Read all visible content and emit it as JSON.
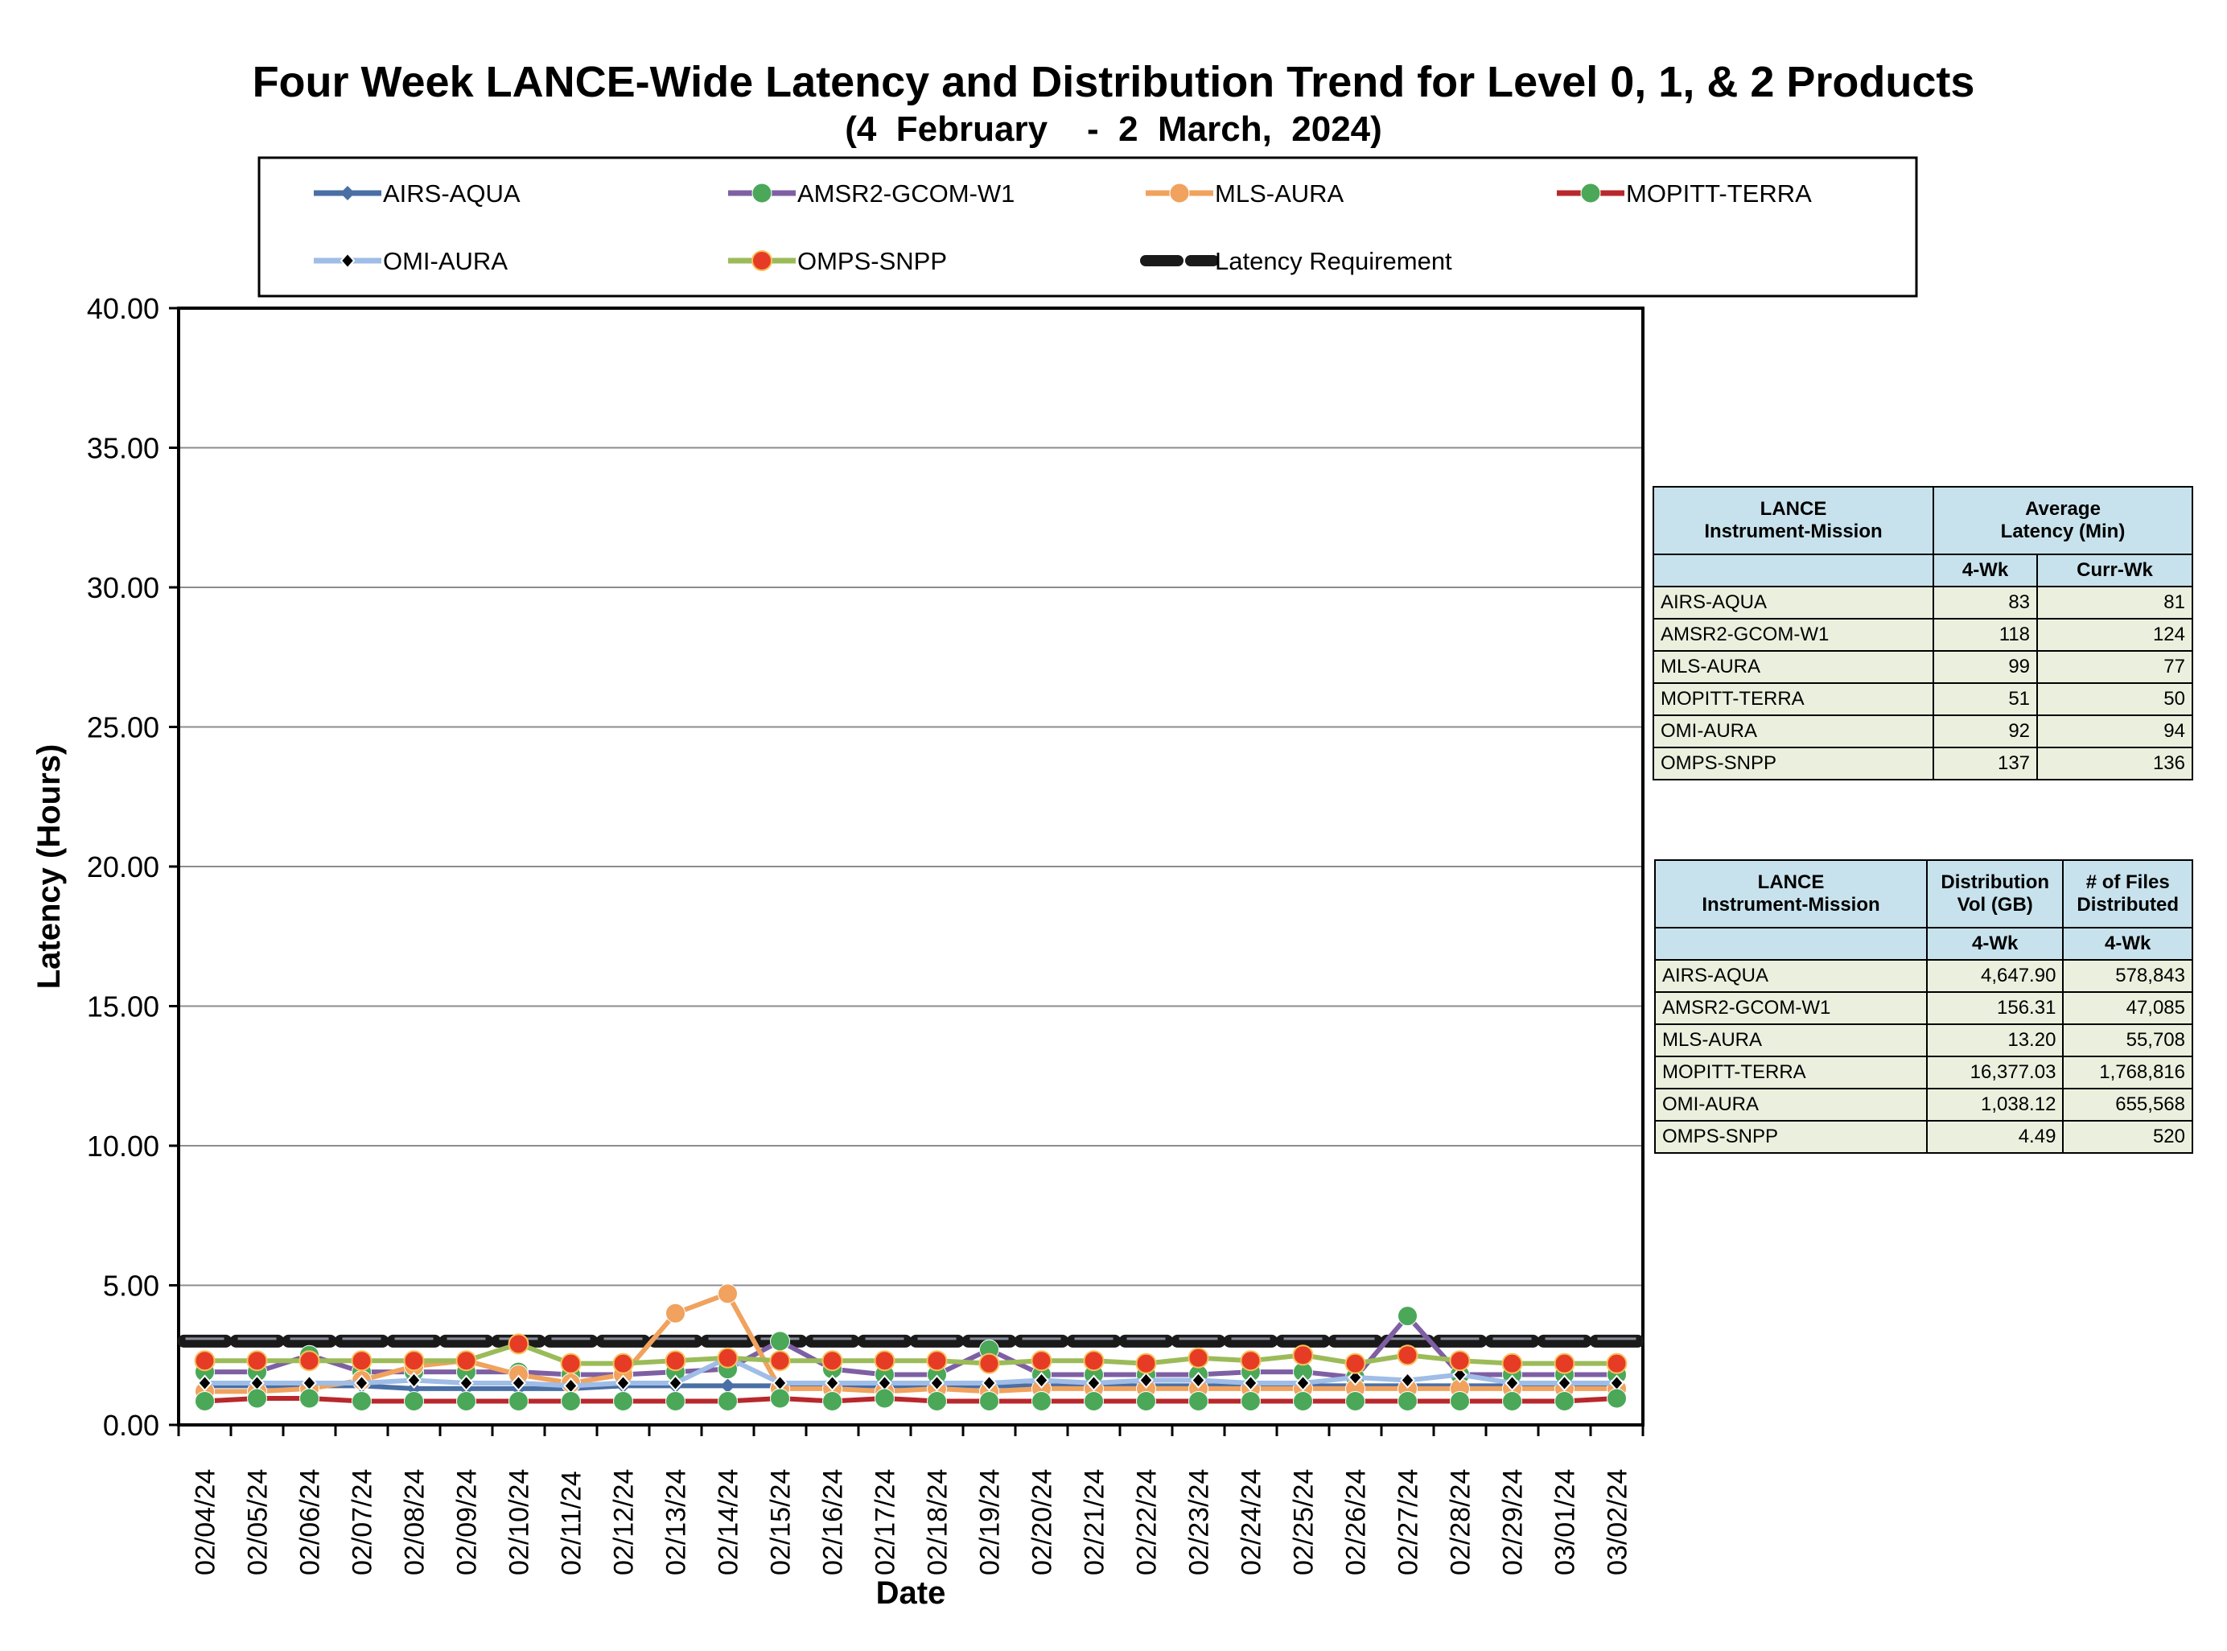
{
  "chart_data": {
    "type": "line",
    "title": "Four Week LANCE-Wide Latency and Distribution Trend for Level 0, 1, & 2 Products",
    "subtitle": "(4  February    -  2  March,  2024)",
    "xlabel": "Date",
    "ylabel": "Latency (Hours)",
    "ylim": [
      0,
      40
    ],
    "yticks": [
      "0.00",
      "5.00",
      "10.00",
      "15.00",
      "20.00",
      "25.00",
      "30.00",
      "35.00",
      "40.00"
    ],
    "grid": true,
    "legend_position": "top",
    "categories": [
      "02/04/24",
      "02/05/24",
      "02/06/24",
      "02/07/24",
      "02/08/24",
      "02/09/24",
      "02/10/24",
      "02/11/24",
      "02/12/24",
      "02/13/24",
      "02/14/24",
      "02/15/24",
      "02/16/24",
      "02/17/24",
      "02/18/24",
      "02/19/24",
      "02/20/24",
      "02/21/24",
      "02/22/24",
      "02/23/24",
      "02/24/24",
      "02/25/24",
      "02/26/24",
      "02/27/24",
      "02/28/24",
      "02/29/24",
      "03/01/24",
      "03/02/24"
    ],
    "series": [
      {
        "name": "AIRS-AQUA",
        "color": "#4a6fa5",
        "marker": "diamond",
        "values": [
          1.4,
          1.4,
          1.4,
          1.4,
          1.3,
          1.3,
          1.3,
          1.3,
          1.4,
          1.4,
          1.4,
          1.4,
          1.4,
          1.4,
          1.4,
          1.4,
          1.4,
          1.4,
          1.4,
          1.4,
          1.4,
          1.4,
          1.4,
          1.4,
          1.4,
          1.4,
          1.4,
          1.4
        ]
      },
      {
        "name": "AMSR2-GCOM-W1",
        "color": "#7e5fa3",
        "marker": "circle-green",
        "values": [
          1.9,
          1.9,
          2.5,
          1.9,
          1.9,
          1.9,
          1.9,
          1.8,
          1.8,
          1.9,
          2.0,
          3.0,
          2.0,
          1.8,
          1.8,
          2.7,
          1.8,
          1.8,
          1.8,
          1.8,
          1.9,
          1.9,
          1.7,
          3.9,
          1.8,
          1.8,
          1.8,
          1.8
        ]
      },
      {
        "name": "MLS-AURA",
        "color": "#f0a25e",
        "marker": "circle-orange",
        "values": [
          1.2,
          1.2,
          1.3,
          1.6,
          2.1,
          2.3,
          1.8,
          1.5,
          1.8,
          4.0,
          4.7,
          1.3,
          1.3,
          1.2,
          1.3,
          1.2,
          1.3,
          1.3,
          1.3,
          1.3,
          1.3,
          1.3,
          1.3,
          1.3,
          1.3,
          1.3,
          1.3,
          1.3
        ]
      },
      {
        "name": "MOPITT-TERRA",
        "color": "#b8282d",
        "marker": "circle-green",
        "values": [
          0.85,
          0.95,
          0.95,
          0.85,
          0.85,
          0.85,
          0.85,
          0.85,
          0.85,
          0.85,
          0.85,
          0.95,
          0.85,
          0.95,
          0.85,
          0.85,
          0.85,
          0.85,
          0.85,
          0.85,
          0.85,
          0.85,
          0.85,
          0.85,
          0.85,
          0.85,
          0.85,
          0.95
        ]
      },
      {
        "name": "OMI-AURA",
        "color": "#9fbde6",
        "marker": "diamond-black",
        "values": [
          1.5,
          1.5,
          1.5,
          1.5,
          1.6,
          1.5,
          1.5,
          1.4,
          1.5,
          1.5,
          2.4,
          1.5,
          1.5,
          1.5,
          1.5,
          1.5,
          1.6,
          1.5,
          1.6,
          1.6,
          1.5,
          1.5,
          1.7,
          1.6,
          1.8,
          1.5,
          1.5,
          1.5
        ]
      },
      {
        "name": "OMPS-SNPP",
        "color": "#9bbb59",
        "marker": "circle-red",
        "values": [
          2.3,
          2.3,
          2.3,
          2.3,
          2.3,
          2.3,
          2.9,
          2.2,
          2.2,
          2.3,
          2.4,
          2.3,
          2.3,
          2.3,
          2.3,
          2.2,
          2.3,
          2.3,
          2.2,
          2.4,
          2.3,
          2.5,
          2.2,
          2.5,
          2.3,
          2.2,
          2.2,
          2.2
        ]
      },
      {
        "name": "Latency Requirement",
        "color": "#111111",
        "marker": "dash",
        "values": [
          3,
          3,
          3,
          3,
          3,
          3,
          3,
          3,
          3,
          3,
          3,
          3,
          3,
          3,
          3,
          3,
          3,
          3,
          3,
          3,
          3,
          3,
          3,
          3,
          3,
          3,
          3,
          3
        ]
      }
    ]
  },
  "latency_table": {
    "header_group": "LANCE\nInstrument-Mission",
    "header_value": "Average\nLatency (Min)",
    "col_4wk": "4-Wk",
    "col_curr": "Curr-Wk",
    "rows": [
      {
        "name": "AIRS-AQUA",
        "wk4": "83",
        "curr": "81"
      },
      {
        "name": "AMSR2-GCOM-W1",
        "wk4": "118",
        "curr": "124"
      },
      {
        "name": "MLS-AURA",
        "wk4": "99",
        "curr": "77"
      },
      {
        "name": "MOPITT-TERRA",
        "wk4": "51",
        "curr": "50"
      },
      {
        "name": "OMI-AURA",
        "wk4": "92",
        "curr": "94"
      },
      {
        "name": "OMPS-SNPP",
        "wk4": "137",
        "curr": "136"
      }
    ]
  },
  "distribution_table": {
    "header_group": "LANCE\nInstrument-Mission",
    "header_vol": "Distribution\nVol (GB)",
    "header_files": "# of Files\nDistributed",
    "col_vol": "4-Wk",
    "col_files": "4-Wk",
    "rows": [
      {
        "name": "AIRS-AQUA",
        "vol": "4,647.90",
        "files": "578,843"
      },
      {
        "name": "AMSR2-GCOM-W1",
        "vol": "156.31",
        "files": "47,085"
      },
      {
        "name": "MLS-AURA",
        "vol": "13.20",
        "files": "55,708"
      },
      {
        "name": "MOPITT-TERRA",
        "vol": "16,377.03",
        "files": "1,768,816"
      },
      {
        "name": "OMI-AURA",
        "vol": "1,038.12",
        "files": "655,568"
      },
      {
        "name": "OMPS-SNPP",
        "vol": "4.49",
        "files": "520"
      }
    ]
  }
}
